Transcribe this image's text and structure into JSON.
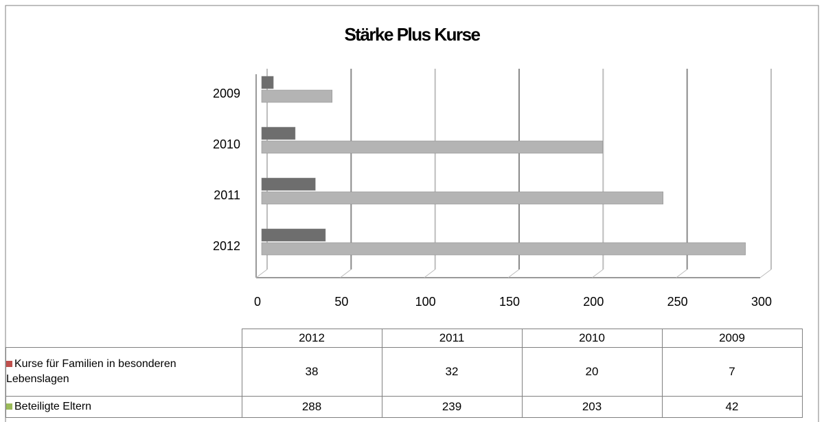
{
  "chart_data": {
    "type": "bar",
    "orientation": "horizontal",
    "title": "Stärke Plus Kurse",
    "categories": [
      "2012",
      "2011",
      "2010",
      "2009"
    ],
    "series": [
      {
        "name": "Kurse für Familien in besonderen Lebenslagen",
        "color": "#6e6e6e",
        "key_color": "#c0504d",
        "values": [
          38,
          32,
          20,
          7
        ]
      },
      {
        "name": "Beteiligte Eltern",
        "color": "#b4b4b4",
        "key_color": "#9bbb59",
        "values": [
          288,
          239,
          203,
          42
        ]
      }
    ],
    "xlim": [
      0,
      300
    ],
    "xticks": [
      0,
      50,
      100,
      150,
      200,
      250,
      300
    ],
    "grid": true,
    "data_table": true
  }
}
